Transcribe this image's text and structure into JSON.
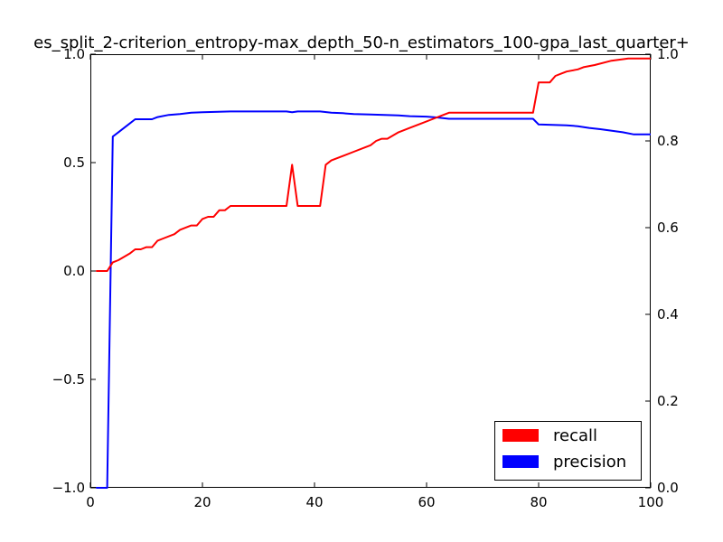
{
  "chart_data": {
    "type": "line",
    "title": "es_split_2-criterion_entropy-max_depth_50-n_estimators_100-gpa_last_quarter+",
    "xlabel": "",
    "ylabel_left": "",
    "ylabel_right": "",
    "xlim": [
      0,
      100
    ],
    "ylim_left": [
      -1.0,
      1.0
    ],
    "ylim_right": [
      0.0,
      1.0
    ],
    "x_ticks": [
      "0",
      "20",
      "40",
      "60",
      "80",
      "100"
    ],
    "y_left_ticks": [
      "−1.0",
      "−0.5",
      "0.0",
      "0.5",
      "1.0"
    ],
    "y_right_ticks": [
      "0.0",
      "0.2",
      "0.4",
      "0.6",
      "0.8",
      "1.0"
    ],
    "grid": false,
    "legend_position": "lower-right",
    "colors": {
      "recall": "#ff0000",
      "precision": "#0000ff"
    },
    "series": [
      {
        "name": "recall",
        "axis": "left",
        "points": [
          [
            1,
            0.0
          ],
          [
            3,
            0.0
          ],
          [
            4,
            0.04
          ],
          [
            5,
            0.05
          ],
          [
            7,
            0.08
          ],
          [
            8,
            0.1
          ],
          [
            9,
            0.1
          ],
          [
            10,
            0.11
          ],
          [
            11,
            0.11
          ],
          [
            12,
            0.14
          ],
          [
            13,
            0.15
          ],
          [
            15,
            0.17
          ],
          [
            16,
            0.19
          ],
          [
            18,
            0.21
          ],
          [
            19,
            0.21
          ],
          [
            20,
            0.24
          ],
          [
            21,
            0.25
          ],
          [
            22,
            0.25
          ],
          [
            23,
            0.28
          ],
          [
            24,
            0.28
          ],
          [
            25,
            0.3
          ],
          [
            26,
            0.3
          ],
          [
            35,
            0.3
          ],
          [
            36,
            0.49
          ],
          [
            37,
            0.3
          ],
          [
            41,
            0.3
          ],
          [
            42,
            0.49
          ],
          [
            43,
            0.51
          ],
          [
            45,
            0.53
          ],
          [
            47,
            0.55
          ],
          [
            49,
            0.57
          ],
          [
            50,
            0.58
          ],
          [
            51,
            0.6
          ],
          [
            52,
            0.61
          ],
          [
            53,
            0.61
          ],
          [
            55,
            0.64
          ],
          [
            57,
            0.66
          ],
          [
            59,
            0.68
          ],
          [
            61,
            0.7
          ],
          [
            63,
            0.72
          ],
          [
            64,
            0.73
          ],
          [
            72,
            0.73
          ],
          [
            79,
            0.73
          ],
          [
            80,
            0.87
          ],
          [
            82,
            0.87
          ],
          [
            83,
            0.9
          ],
          [
            84,
            0.91
          ],
          [
            85,
            0.92
          ],
          [
            87,
            0.93
          ],
          [
            88,
            0.94
          ],
          [
            90,
            0.95
          ],
          [
            93,
            0.97
          ],
          [
            96,
            0.98
          ],
          [
            100,
            0.98
          ]
        ]
      },
      {
        "name": "precision",
        "axis": "right",
        "points": [
          [
            1,
            0.0
          ],
          [
            3,
            0.0
          ],
          [
            4,
            0.81
          ],
          [
            5,
            0.82
          ],
          [
            7,
            0.84
          ],
          [
            8,
            0.85
          ],
          [
            11,
            0.85
          ],
          [
            12,
            0.855
          ],
          [
            14,
            0.86
          ],
          [
            16,
            0.862
          ],
          [
            18,
            0.865
          ],
          [
            20,
            0.866
          ],
          [
            25,
            0.868
          ],
          [
            30,
            0.868
          ],
          [
            35,
            0.868
          ],
          [
            36,
            0.866
          ],
          [
            37,
            0.868
          ],
          [
            41,
            0.868
          ],
          [
            43,
            0.865
          ],
          [
            45,
            0.864
          ],
          [
            47,
            0.862
          ],
          [
            50,
            0.861
          ],
          [
            55,
            0.859
          ],
          [
            57,
            0.857
          ],
          [
            60,
            0.856
          ],
          [
            62,
            0.854
          ],
          [
            64,
            0.851
          ],
          [
            70,
            0.851
          ],
          [
            79,
            0.851
          ],
          [
            80,
            0.838
          ],
          [
            85,
            0.836
          ],
          [
            87,
            0.834
          ],
          [
            89,
            0.83
          ],
          [
            91,
            0.827
          ],
          [
            95,
            0.82
          ],
          [
            97,
            0.815
          ],
          [
            100,
            0.815
          ]
        ]
      }
    ]
  }
}
